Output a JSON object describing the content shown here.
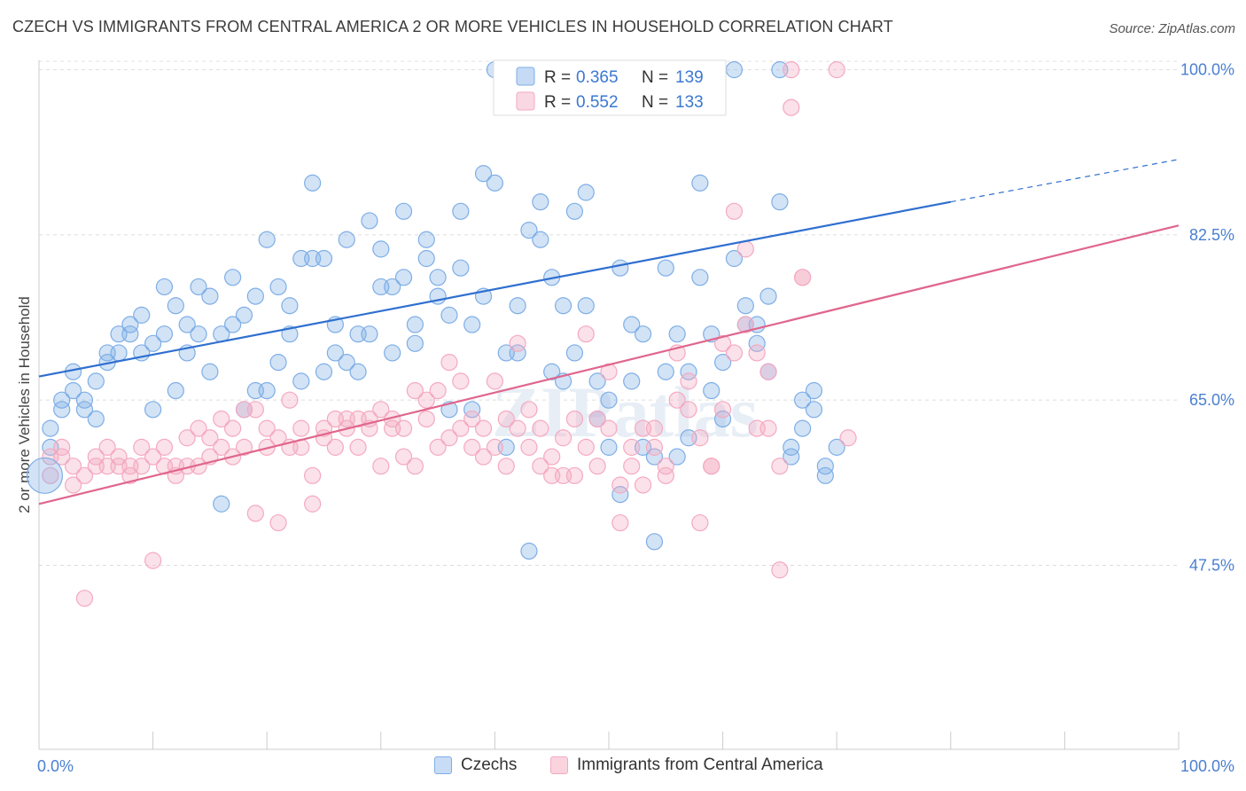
{
  "title": "CZECH VS IMMIGRANTS FROM CENTRAL AMERICA 2 OR MORE VEHICLES IN HOUSEHOLD CORRELATION CHART",
  "source": "Source: ZipAtlas.com",
  "watermark": "ZIPatlas",
  "chart_data": {
    "type": "scatter",
    "title": "CZECH VS IMMIGRANTS FROM CENTRAL AMERICA 2 OR MORE VEHICLES IN HOUSEHOLD CORRELATION CHART",
    "xlabel": "",
    "ylabel": "2 or more Vehicles in Household",
    "xlim": [
      0,
      100
    ],
    "ylim": [
      28,
      101
    ],
    "x_tick_labels": [
      "0.0%",
      "100.0%"
    ],
    "y_ticks": [
      47.5,
      65.0,
      82.5,
      100.0
    ],
    "y_tick_labels": [
      "47.5%",
      "65.0%",
      "82.5%",
      "100.0%"
    ],
    "grid": true,
    "legend_placement": "top-center",
    "series": [
      {
        "name": "Czechs",
        "color": "#7eaee6",
        "line_color": "#2f6fd0",
        "r": "0.365",
        "n": "139",
        "trend": {
          "x0": 0,
          "y0": 67.5,
          "x1": 80,
          "y1": 86.0,
          "dash_to_x": 100,
          "dash_to_y": 90.5
        },
        "points": [
          [
            1,
            60
          ],
          [
            1,
            62
          ],
          [
            2,
            65
          ],
          [
            2,
            64
          ],
          [
            3,
            68
          ],
          [
            3,
            66
          ],
          [
            4,
            64
          ],
          [
            4,
            65
          ],
          [
            5,
            63
          ],
          [
            5,
            67
          ],
          [
            6,
            69
          ],
          [
            6,
            70
          ],
          [
            7,
            70
          ],
          [
            7,
            72
          ],
          [
            8,
            72
          ],
          [
            8,
            73
          ],
          [
            9,
            70
          ],
          [
            9,
            74
          ],
          [
            10,
            64
          ],
          [
            10,
            71
          ],
          [
            11,
            72
          ],
          [
            11,
            77
          ],
          [
            12,
            66
          ],
          [
            12,
            75
          ],
          [
            13,
            70
          ],
          [
            13,
            73
          ],
          [
            14,
            72
          ],
          [
            14,
            77
          ],
          [
            15,
            68
          ],
          [
            15,
            76
          ],
          [
            16,
            54
          ],
          [
            16,
            72
          ],
          [
            17,
            73
          ],
          [
            17,
            78
          ],
          [
            18,
            74
          ],
          [
            18,
            64
          ],
          [
            19,
            66
          ],
          [
            19,
            76
          ],
          [
            20,
            82
          ],
          [
            20,
            66
          ],
          [
            21,
            69
          ],
          [
            21,
            77
          ],
          [
            22,
            72
          ],
          [
            22,
            75
          ],
          [
            23,
            67
          ],
          [
            23,
            80
          ],
          [
            24,
            80
          ],
          [
            24,
            88
          ],
          [
            25,
            80
          ],
          [
            25,
            68
          ],
          [
            26,
            73
          ],
          [
            26,
            70
          ],
          [
            27,
            82
          ],
          [
            27,
            69
          ],
          [
            28,
            72
          ],
          [
            28,
            68
          ],
          [
            29,
            84
          ],
          [
            29,
            72
          ],
          [
            30,
            77
          ],
          [
            30,
            81
          ],
          [
            31,
            70
          ],
          [
            31,
            77
          ],
          [
            32,
            85
          ],
          [
            32,
            78
          ],
          [
            33,
            73
          ],
          [
            33,
            71
          ],
          [
            34,
            80
          ],
          [
            34,
            82
          ],
          [
            35,
            78
          ],
          [
            35,
            76
          ],
          [
            36,
            74
          ],
          [
            36,
            64
          ],
          [
            37,
            85
          ],
          [
            37,
            79
          ],
          [
            38,
            64
          ],
          [
            38,
            73
          ],
          [
            39,
            76
          ],
          [
            39,
            89
          ],
          [
            40,
            88
          ],
          [
            40,
            100
          ],
          [
            41,
            70
          ],
          [
            41,
            60
          ],
          [
            42,
            75
          ],
          [
            42,
            70
          ],
          [
            43,
            83
          ],
          [
            43,
            49
          ],
          [
            44,
            82
          ],
          [
            44,
            86
          ],
          [
            45,
            78
          ],
          [
            45,
            68
          ],
          [
            46,
            75
          ],
          [
            46,
            67
          ],
          [
            47,
            85
          ],
          [
            47,
            70
          ],
          [
            48,
            87
          ],
          [
            48,
            75
          ],
          [
            49,
            67
          ],
          [
            49,
            63
          ],
          [
            50,
            65
          ],
          [
            50,
            60
          ],
          [
            51,
            55
          ],
          [
            51,
            79
          ],
          [
            52,
            67
          ],
          [
            52,
            73
          ],
          [
            53,
            72
          ],
          [
            53,
            60
          ],
          [
            54,
            50
          ],
          [
            54,
            59
          ],
          [
            55,
            68
          ],
          [
            55,
            79
          ],
          [
            56,
            59
          ],
          [
            56,
            72
          ],
          [
            57,
            68
          ],
          [
            57,
            61
          ],
          [
            58,
            88
          ],
          [
            58,
            78
          ],
          [
            59,
            72
          ],
          [
            59,
            66
          ],
          [
            60,
            69
          ],
          [
            60,
            63
          ],
          [
            61,
            100
          ],
          [
            61,
            80
          ],
          [
            62,
            75
          ],
          [
            62,
            73
          ],
          [
            63,
            71
          ],
          [
            63,
            73
          ],
          [
            64,
            76
          ],
          [
            64,
            68
          ],
          [
            65,
            100
          ],
          [
            65,
            86
          ],
          [
            66,
            59
          ],
          [
            66,
            60
          ],
          [
            67,
            62
          ],
          [
            67,
            65
          ],
          [
            68,
            66
          ],
          [
            68,
            64
          ],
          [
            69,
            57
          ],
          [
            69,
            58
          ],
          [
            70,
            60
          ]
        ]
      },
      {
        "name": "Immigrants from Central America",
        "color": "#f4a9c1",
        "line_color": "#e0668d",
        "r": "0.552",
        "n": "133",
        "trend": {
          "x0": 0,
          "y0": 54.0,
          "x1": 100,
          "y1": 83.5
        },
        "points": [
          [
            1,
            59
          ],
          [
            1,
            57
          ],
          [
            2,
            59
          ],
          [
            2,
            60
          ],
          [
            3,
            58
          ],
          [
            3,
            56
          ],
          [
            4,
            57
          ],
          [
            4,
            44
          ],
          [
            5,
            58
          ],
          [
            5,
            59
          ],
          [
            6,
            58
          ],
          [
            6,
            60
          ],
          [
            7,
            58
          ],
          [
            7,
            59
          ],
          [
            8,
            57
          ],
          [
            8,
            58
          ],
          [
            9,
            58
          ],
          [
            9,
            60
          ],
          [
            10,
            59
          ],
          [
            10,
            48
          ],
          [
            11,
            58
          ],
          [
            11,
            60
          ],
          [
            12,
            58
          ],
          [
            12,
            57
          ],
          [
            13,
            61
          ],
          [
            13,
            58
          ],
          [
            14,
            62
          ],
          [
            14,
            58
          ],
          [
            15,
            59
          ],
          [
            15,
            61
          ],
          [
            16,
            60
          ],
          [
            16,
            63
          ],
          [
            17,
            59
          ],
          [
            17,
            62
          ],
          [
            18,
            64
          ],
          [
            18,
            60
          ],
          [
            19,
            64
          ],
          [
            19,
            53
          ],
          [
            20,
            62
          ],
          [
            20,
            60
          ],
          [
            21,
            61
          ],
          [
            21,
            52
          ],
          [
            22,
            60
          ],
          [
            22,
            65
          ],
          [
            23,
            62
          ],
          [
            23,
            60
          ],
          [
            24,
            57
          ],
          [
            24,
            54
          ],
          [
            25,
            62
          ],
          [
            25,
            61
          ],
          [
            26,
            63
          ],
          [
            26,
            60
          ],
          [
            27,
            63
          ],
          [
            27,
            62
          ],
          [
            28,
            63
          ],
          [
            28,
            60
          ],
          [
            29,
            62
          ],
          [
            29,
            63
          ],
          [
            30,
            64
          ],
          [
            30,
            58
          ],
          [
            31,
            63
          ],
          [
            31,
            62
          ],
          [
            32,
            62
          ],
          [
            32,
            59
          ],
          [
            33,
            58
          ],
          [
            33,
            66
          ],
          [
            34,
            65
          ],
          [
            34,
            63
          ],
          [
            35,
            66
          ],
          [
            35,
            60
          ],
          [
            36,
            61
          ],
          [
            36,
            69
          ],
          [
            37,
            62
          ],
          [
            37,
            67
          ],
          [
            38,
            60
          ],
          [
            38,
            63
          ],
          [
            39,
            59
          ],
          [
            39,
            62
          ],
          [
            40,
            67
          ],
          [
            40,
            60
          ],
          [
            41,
            58
          ],
          [
            41,
            63
          ],
          [
            42,
            71
          ],
          [
            42,
            62
          ],
          [
            43,
            60
          ],
          [
            43,
            64
          ],
          [
            44,
            58
          ],
          [
            44,
            62
          ],
          [
            45,
            57
          ],
          [
            45,
            59
          ],
          [
            46,
            61
          ],
          [
            46,
            57
          ],
          [
            47,
            57
          ],
          [
            47,
            63
          ],
          [
            48,
            72
          ],
          [
            48,
            60
          ],
          [
            49,
            63
          ],
          [
            49,
            58
          ],
          [
            50,
            68
          ],
          [
            50,
            62
          ],
          [
            51,
            52
          ],
          [
            51,
            56
          ],
          [
            52,
            60
          ],
          [
            52,
            58
          ],
          [
            53,
            56
          ],
          [
            53,
            62
          ],
          [
            54,
            60
          ],
          [
            54,
            62
          ],
          [
            55,
            57
          ],
          [
            55,
            58
          ],
          [
            56,
            65
          ],
          [
            56,
            70
          ],
          [
            57,
            64
          ],
          [
            57,
            67
          ],
          [
            58,
            52
          ],
          [
            58,
            61
          ],
          [
            59,
            58
          ],
          [
            59,
            58
          ],
          [
            60,
            71
          ],
          [
            60,
            64
          ],
          [
            61,
            85
          ],
          [
            61,
            70
          ],
          [
            62,
            81
          ],
          [
            62,
            73
          ],
          [
            63,
            70
          ],
          [
            63,
            62
          ],
          [
            64,
            68
          ],
          [
            64,
            62
          ],
          [
            65,
            58
          ],
          [
            65,
            47
          ],
          [
            66,
            100
          ],
          [
            66,
            96
          ],
          [
            67,
            78
          ],
          [
            67,
            78
          ],
          [
            70,
            100
          ],
          [
            71,
            61
          ]
        ]
      }
    ]
  },
  "legend": {
    "rows": [
      {
        "r_label": "R =",
        "r_value": "0.365",
        "n_label": "N =",
        "n_value": "139"
      },
      {
        "r_label": "R =",
        "r_value": "0.552",
        "n_label": "N =",
        "n_value": "133"
      }
    ]
  },
  "bottom_legend": [
    "Czechs",
    "Immigrants from Central America"
  ]
}
